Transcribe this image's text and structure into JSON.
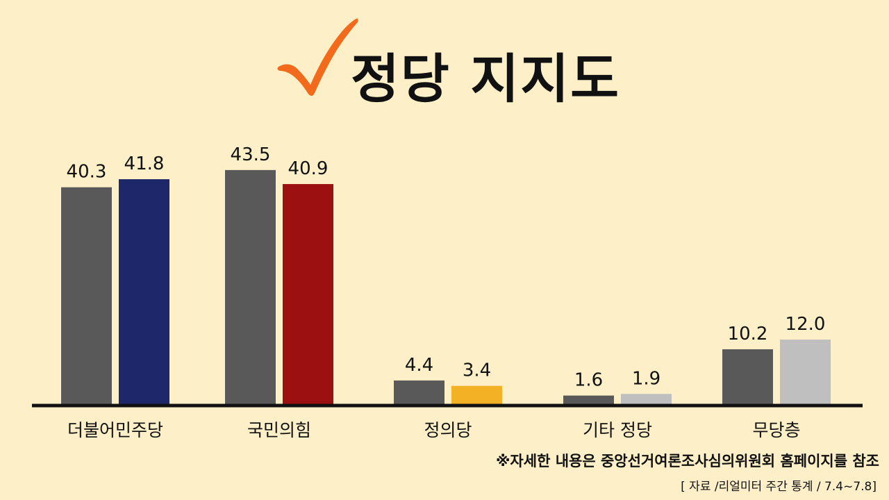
{
  "page": {
    "title": "정당 지지도",
    "check_icon": "orange-checkmark-icon",
    "note": "※자세한 내용은 중앙선거여론조사심의위원회 홈페이지를 참조",
    "source": "[ 자료 /리얼미터 주간 통계 / 7.4~7.8]"
  },
  "colors": {
    "background": "#fdefc8",
    "previous": "#595959",
    "democratic": "#1f276b",
    "peoplepower": "#9c1012",
    "justice": "#f3b125",
    "other": "#bfbfbf",
    "independent": "#bfbfbf",
    "check": "#f26a1b",
    "axis": "#111111"
  },
  "chart_data": {
    "type": "bar",
    "title": "정당 지지도",
    "categories": [
      "더불어민주당",
      "국민의힘",
      "정의당",
      "기타 정당",
      "무당층"
    ],
    "series": [
      {
        "values": [
          40.3,
          43.5,
          4.4,
          1.6,
          10.2
        ]
      },
      {
        "values": [
          41.8,
          40.9,
          3.4,
          1.9,
          12.0
        ]
      }
    ],
    "labels": [
      [
        "40.3",
        "41.8"
      ],
      [
        "43.5",
        "40.9"
      ],
      [
        "4.4",
        "3.4"
      ],
      [
        "1.6",
        "1.9"
      ],
      [
        "10.2",
        "12.0"
      ]
    ],
    "bar_colors": [
      [
        "#595959",
        "#1f276b"
      ],
      [
        "#595959",
        "#9c1012"
      ],
      [
        "#595959",
        "#f3b125"
      ],
      [
        "#595959",
        "#bfbfbf"
      ],
      [
        "#595959",
        "#bfbfbf"
      ]
    ],
    "ylim": [
      0,
      50
    ],
    "grid": false,
    "legend": "none",
    "xlabel": "",
    "ylabel": ""
  }
}
